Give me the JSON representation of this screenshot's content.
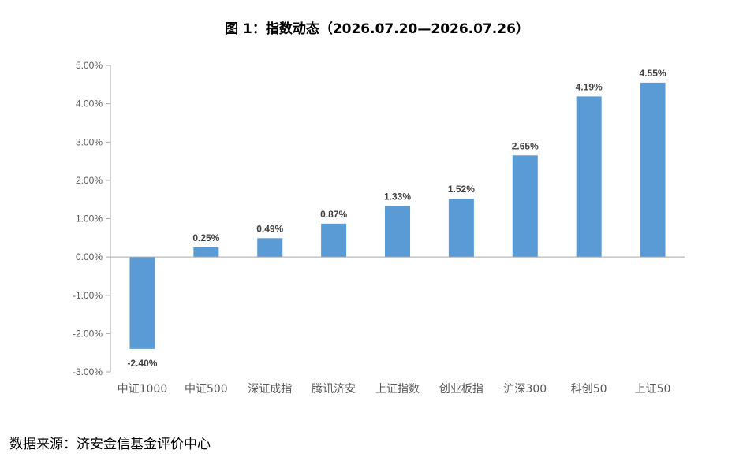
{
  "title": "图 1：指数动态（2026.07.20—2026.07.26）",
  "source": "数据来源：济安金信基金评价中心",
  "colors": {
    "bar": "#5b9bd5",
    "axis": "#a6a6a6",
    "tick_text": "#595959",
    "label_text": "#404040"
  },
  "chart_data": {
    "type": "bar",
    "title": "图 1：指数动态（2026.07.20—2026.07.26）",
    "xlabel": "",
    "ylabel": "",
    "ylim": [
      -3.0,
      5.0
    ],
    "yticks": [
      5.0,
      4.0,
      3.0,
      2.0,
      1.0,
      0.0,
      -1.0,
      -2.0,
      -3.0
    ],
    "ytick_labels": [
      "5.00%",
      "4.00%",
      "3.00%",
      "2.00%",
      "1.00%",
      "0.00%",
      "-1.00%",
      "-2.00%",
      "-3.00%"
    ],
    "categories": [
      "中证1000",
      "中证500",
      "深证成指",
      "腾讯济安",
      "上证指数",
      "创业板指",
      "沪深300",
      "科创50",
      "上证50"
    ],
    "values": [
      -2.4,
      0.25,
      0.49,
      0.87,
      1.33,
      1.52,
      2.65,
      4.19,
      4.55
    ],
    "data_labels": [
      "-2.40%",
      "0.25%",
      "0.49%",
      "0.87%",
      "1.33%",
      "1.52%",
      "2.65%",
      "4.19%",
      "4.55%"
    ],
    "grid": false,
    "legend": "none"
  }
}
